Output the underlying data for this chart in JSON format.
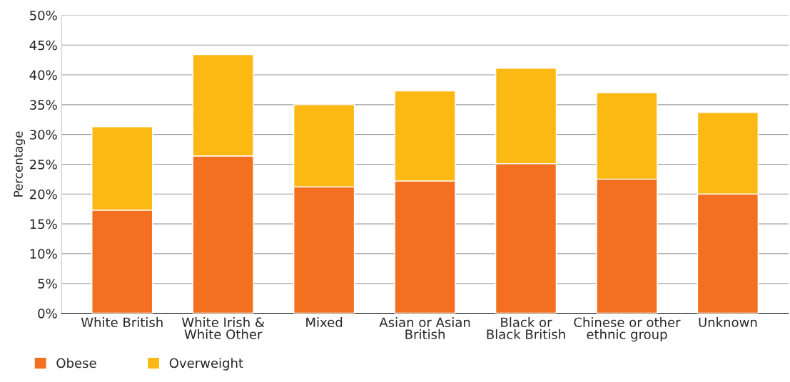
{
  "chart_data": {
    "type": "bar",
    "stacked": true,
    "ylabel": "Percentage",
    "categories": [
      "White British",
      "White Irish &\nWhite Other",
      "Mixed",
      "Asian or Asian\nBritish",
      "Black or\nBlack British",
      "Chinese or other\nethnic group",
      "Unknown"
    ],
    "series": [
      {
        "name": "Obese",
        "color": "#f37021",
        "values": [
          17.3,
          26.4,
          21.2,
          22.2,
          25.1,
          22.5,
          20.0
        ]
      },
      {
        "name": "Overweight",
        "color": "#fdb913",
        "values": [
          14.0,
          17.0,
          13.8,
          15.1,
          16.0,
          14.5,
          13.7
        ]
      }
    ],
    "ylim": [
      0,
      50
    ],
    "yticks": [
      {
        "value": 0,
        "label": "0%"
      },
      {
        "value": 5,
        "label": "5%"
      },
      {
        "value": 10,
        "label": "10%"
      },
      {
        "value": 15,
        "label": "15%"
      },
      {
        "value": 20,
        "label": "20%"
      },
      {
        "value": 25,
        "label": "25%"
      },
      {
        "value": 30,
        "label": "30%"
      },
      {
        "value": 35,
        "label": "35%"
      },
      {
        "value": 40,
        "label": "40%"
      },
      {
        "value": 45,
        "label": "45%"
      },
      {
        "value": 50,
        "label": "50%"
      }
    ],
    "grid": "y",
    "legend": "bottom left"
  }
}
